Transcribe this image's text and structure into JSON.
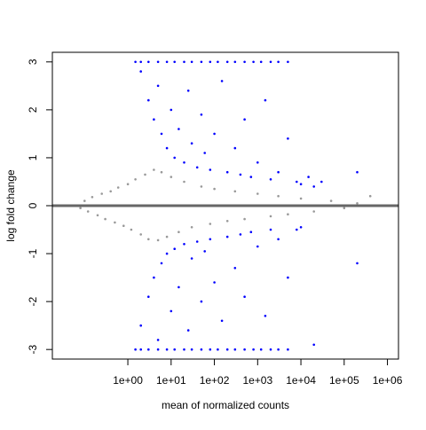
{
  "chart_data": {
    "type": "scatter",
    "title": "",
    "xlabel": "mean of normalized counts",
    "ylabel": "log fold change",
    "x_scale": "log10",
    "xlim": [
      0.018,
      1800000
    ],
    "ylim": [
      -3.2,
      3.2
    ],
    "x_ticks": [
      {
        "value": 1,
        "label": "1e+00"
      },
      {
        "value": 10,
        "label": "1e+01"
      },
      {
        "value": 100,
        "label": "1e+02"
      },
      {
        "value": 1000,
        "label": "1e+03"
      },
      {
        "value": 10000,
        "label": "1e+04"
      },
      {
        "value": 100000,
        "label": "1e+05"
      },
      {
        "value": 1000000,
        "label": "1e+06"
      }
    ],
    "y_ticks": [
      {
        "value": -3,
        "label": "-3"
      },
      {
        "value": -2,
        "label": "-2"
      },
      {
        "value": -1,
        "label": "-1"
      },
      {
        "value": 0,
        "label": "0"
      },
      {
        "value": 1,
        "label": "1"
      },
      {
        "value": 2,
        "label": "2"
      },
      {
        "value": 3,
        "label": "3"
      }
    ],
    "reference_line": {
      "y": 0,
      "color": "#666666"
    },
    "colors": {
      "significant": "#0000ff",
      "not_significant": "#999999",
      "out_of_range": "#0000ff"
    },
    "series": [
      {
        "color": "#999999",
        "points": [
          [
            0.05,
            0.0
          ],
          [
            0.08,
            -0.05
          ],
          [
            0.1,
            0.1
          ],
          [
            0.12,
            -0.12
          ],
          [
            0.15,
            0.18
          ],
          [
            0.2,
            -0.2
          ],
          [
            0.25,
            0.25
          ],
          [
            0.3,
            -0.28
          ],
          [
            0.4,
            0.3
          ],
          [
            0.5,
            -0.35
          ],
          [
            0.6,
            0.38
          ],
          [
            0.8,
            -0.42
          ],
          [
            1.0,
            0.45
          ],
          [
            1.2,
            -0.5
          ],
          [
            1.5,
            0.55
          ],
          [
            2,
            -0.6
          ],
          [
            2.5,
            0.65
          ],
          [
            3,
            -0.7
          ],
          [
            4,
            0.75
          ],
          [
            5,
            -0.72
          ],
          [
            6,
            0.7
          ],
          [
            8,
            -0.65
          ],
          [
            10,
            0.6
          ],
          [
            15,
            -0.55
          ],
          [
            20,
            0.5
          ],
          [
            30,
            -0.45
          ],
          [
            50,
            0.4
          ],
          [
            80,
            -0.38
          ],
          [
            100,
            0.35
          ],
          [
            200,
            -0.32
          ],
          [
            300,
            0.3
          ],
          [
            500,
            -0.28
          ],
          [
            1000,
            0.25
          ],
          [
            2000,
            -0.22
          ],
          [
            3000,
            0.2
          ],
          [
            5000,
            -0.18
          ],
          [
            10000,
            0.15
          ],
          [
            20000,
            -0.12
          ],
          [
            50000,
            0.1
          ],
          [
            100000,
            -0.05
          ],
          [
            200000,
            0.05
          ],
          [
            400000,
            0.2
          ]
        ]
      },
      {
        "color": "#0000ff",
        "points": [
          [
            2,
            2.8
          ],
          [
            3,
            2.2
          ],
          [
            4,
            1.8
          ],
          [
            5,
            2.5
          ],
          [
            6,
            1.5
          ],
          [
            8,
            1.2
          ],
          [
            10,
            2.0
          ],
          [
            12,
            1.0
          ],
          [
            15,
            1.6
          ],
          [
            20,
            0.9
          ],
          [
            25,
            2.4
          ],
          [
            30,
            1.3
          ],
          [
            40,
            0.8
          ],
          [
            50,
            1.9
          ],
          [
            60,
            1.1
          ],
          [
            80,
            0.75
          ],
          [
            100,
            1.5
          ],
          [
            150,
            2.6
          ],
          [
            200,
            0.7
          ],
          [
            300,
            1.2
          ],
          [
            400,
            0.65
          ],
          [
            500,
            1.8
          ],
          [
            700,
            0.6
          ],
          [
            1000,
            0.9
          ],
          [
            1500,
            2.2
          ],
          [
            2000,
            0.55
          ],
          [
            3000,
            0.7
          ],
          [
            5000,
            1.4
          ],
          [
            8000,
            0.5
          ],
          [
            10000,
            0.45
          ],
          [
            15000,
            0.6
          ],
          [
            20000,
            0.4
          ],
          [
            30000,
            0.5
          ],
          [
            200000,
            0.7
          ],
          [
            2,
            -2.5
          ],
          [
            3,
            -1.9
          ],
          [
            4,
            -1.5
          ],
          [
            5,
            -2.8
          ],
          [
            6,
            -1.2
          ],
          [
            8,
            -1.0
          ],
          [
            10,
            -2.2
          ],
          [
            12,
            -0.9
          ],
          [
            15,
            -1.7
          ],
          [
            20,
            -0.8
          ],
          [
            25,
            -2.6
          ],
          [
            30,
            -1.1
          ],
          [
            40,
            -0.75
          ],
          [
            50,
            -2.0
          ],
          [
            60,
            -0.95
          ],
          [
            80,
            -0.7
          ],
          [
            100,
            -1.6
          ],
          [
            150,
            -2.4
          ],
          [
            200,
            -0.65
          ],
          [
            300,
            -1.3
          ],
          [
            400,
            -0.6
          ],
          [
            500,
            -1.9
          ],
          [
            700,
            -0.55
          ],
          [
            1000,
            -0.85
          ],
          [
            1500,
            -2.3
          ],
          [
            2000,
            -0.5
          ],
          [
            3000,
            -0.7
          ],
          [
            5000,
            -1.5
          ],
          [
            8000,
            -0.5
          ],
          [
            10000,
            -0.45
          ],
          [
            20000,
            -2.9
          ],
          [
            200000,
            -1.2
          ]
        ]
      },
      {
        "color": "#0000ff",
        "points": [
          [
            1.5,
            3
          ],
          [
            2,
            3
          ],
          [
            3,
            3
          ],
          [
            5,
            3
          ],
          [
            8,
            3
          ],
          [
            12,
            3
          ],
          [
            20,
            3
          ],
          [
            30,
            3
          ],
          [
            50,
            3
          ],
          [
            80,
            3
          ],
          [
            120,
            3
          ],
          [
            200,
            3
          ],
          [
            300,
            3
          ],
          [
            500,
            3
          ],
          [
            800,
            3
          ],
          [
            1200,
            3
          ],
          [
            2000,
            3
          ],
          [
            3000,
            3
          ],
          [
            5000,
            3
          ],
          [
            1.5,
            -3
          ],
          [
            2,
            -3
          ],
          [
            3,
            -3
          ],
          [
            5,
            -3
          ],
          [
            8,
            -3
          ],
          [
            12,
            -3
          ],
          [
            20,
            -3
          ],
          [
            30,
            -3
          ],
          [
            50,
            -3
          ],
          [
            80,
            -3
          ],
          [
            120,
            -3
          ],
          [
            200,
            -3
          ],
          [
            300,
            -3
          ],
          [
            500,
            -3
          ],
          [
            800,
            -3
          ],
          [
            1200,
            -3
          ],
          [
            2000,
            -3
          ],
          [
            3000,
            -3
          ],
          [
            5000,
            -3
          ]
        ]
      }
    ]
  }
}
